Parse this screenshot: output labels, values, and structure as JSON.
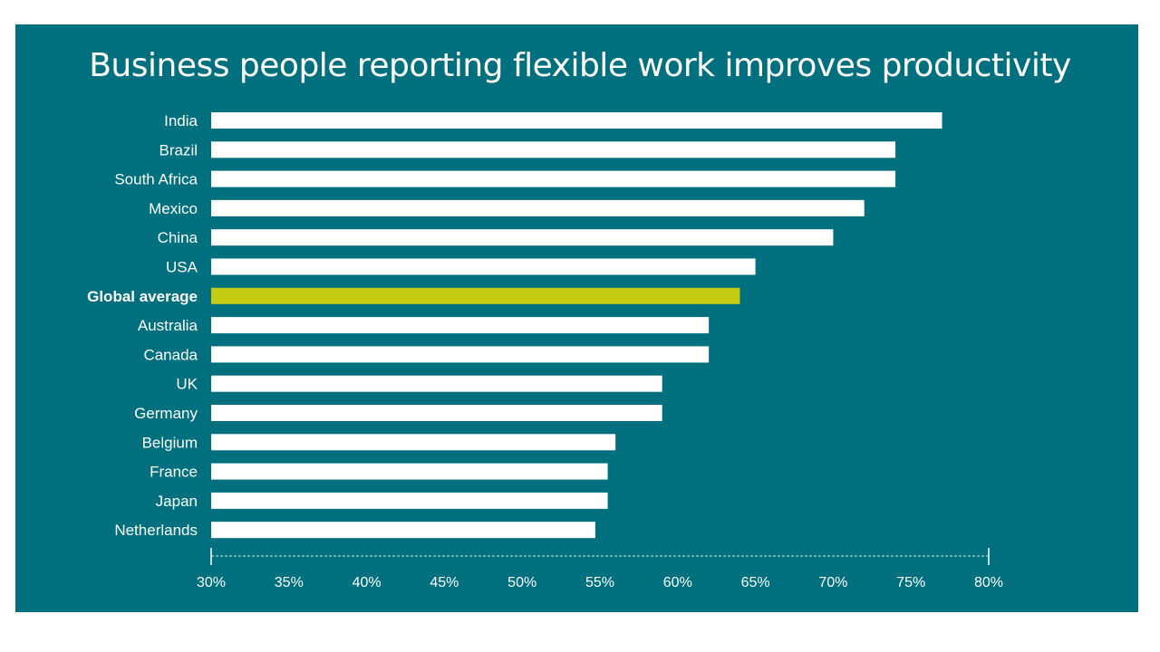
{
  "chart_data": {
    "type": "bar",
    "orientation": "horizontal",
    "title": "Business people reporting flexible work improves productivity",
    "categories": [
      "India",
      "Brazil",
      "South Africa",
      "Mexico",
      "China",
      "USA",
      "Global average",
      "Australia",
      "Canada",
      "UK",
      "Germany",
      "Belgium",
      "France",
      "Japan",
      "Netherlands"
    ],
    "values": [
      77,
      74,
      74,
      72,
      70,
      65,
      64,
      62,
      62,
      59,
      59,
      56,
      55.5,
      55.5,
      54.7
    ],
    "highlight": "Global average",
    "xlim": [
      30,
      80
    ],
    "ticks": [
      "30%",
      "35%",
      "40%",
      "45%",
      "50%",
      "55%",
      "60%",
      "65%",
      "70%",
      "75%",
      "80%"
    ],
    "xlabel": "",
    "ylabel": "",
    "grid": false,
    "colors": {
      "background": "#00707f",
      "bar": "#ffffff",
      "highlight": "#c3cc12",
      "text": "#ffffff"
    }
  }
}
